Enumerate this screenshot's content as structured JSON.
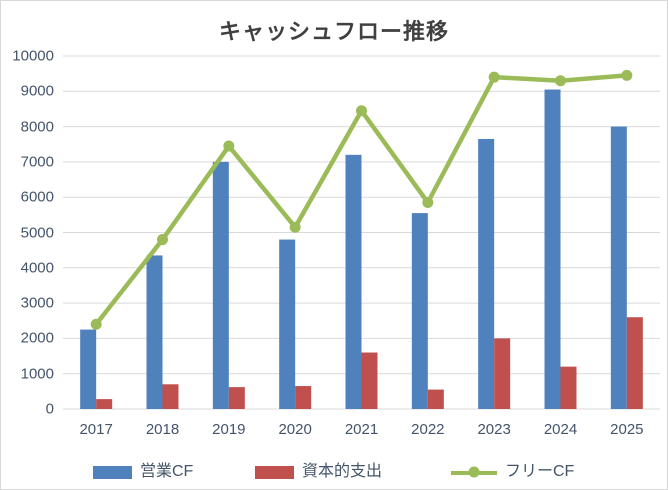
{
  "chart_data": {
    "type": "combo",
    "title": "キャッシュフロー推移",
    "categories": [
      "2017",
      "2018",
      "2019",
      "2020",
      "2021",
      "2022",
      "2023",
      "2024",
      "2025"
    ],
    "series": [
      {
        "id": "operating-cf",
        "name": "営業CF",
        "kind": "bar",
        "color": "#4F81BD",
        "values": [
          2250,
          4350,
          7000,
          4800,
          7200,
          5550,
          7650,
          9050,
          8000
        ]
      },
      {
        "id": "capex",
        "name": "資本的支出",
        "kind": "bar",
        "color": "#C0504D",
        "values": [
          280,
          700,
          620,
          650,
          1600,
          550,
          2000,
          1200,
          2600
        ]
      },
      {
        "id": "free-cf",
        "name": "フリーCF",
        "kind": "line",
        "color": "#9BBB59",
        "values": [
          2400,
          4800,
          7450,
          5150,
          8450,
          5850,
          9400,
          9300,
          9450
        ]
      }
    ],
    "ylim": [
      0,
      10000
    ],
    "ytick_interval": 1000,
    "yticks": [
      "0",
      "1000",
      "2000",
      "3000",
      "4000",
      "5000",
      "6000",
      "7000",
      "8000",
      "9000",
      "10000"
    ],
    "grid": true,
    "legend_position": "bottom",
    "colors": {
      "grid": "#D9D9D9",
      "axis_text": "#44546A",
      "title_text": "#404040",
      "canvas_border": "#D9D9D9",
      "background": "#FFFFFF"
    }
  }
}
